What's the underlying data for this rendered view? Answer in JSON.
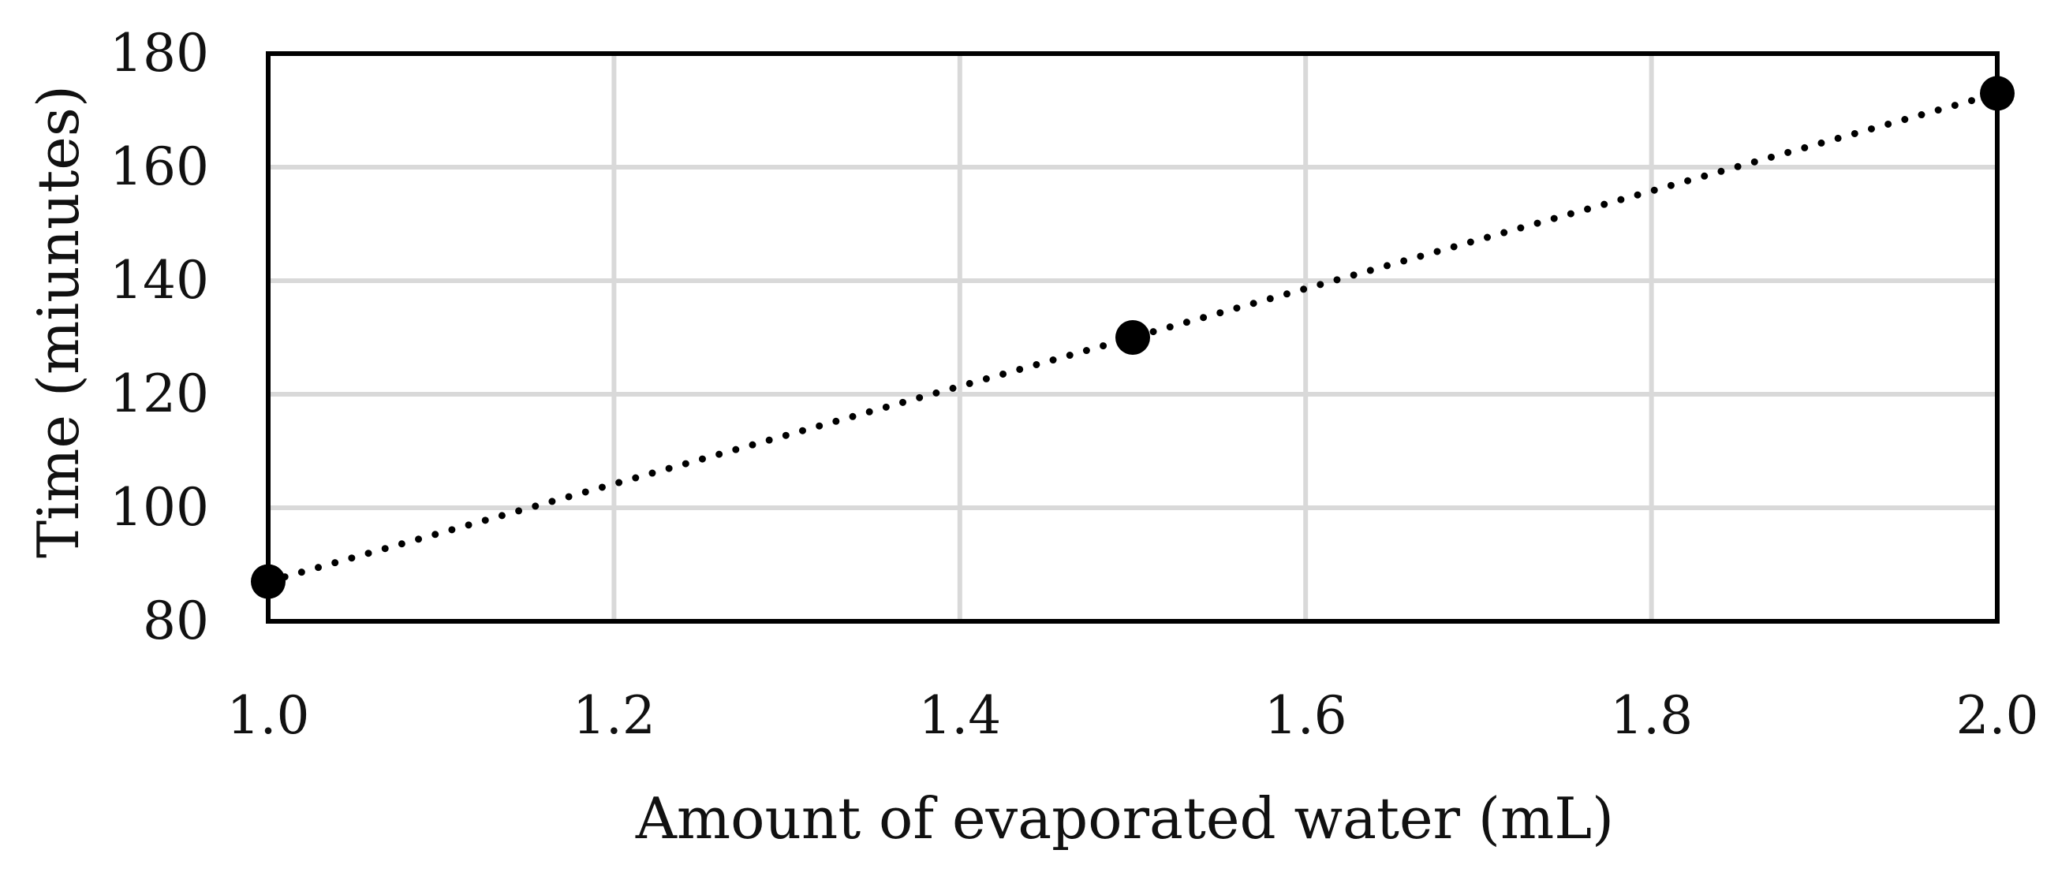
{
  "chart_data": {
    "type": "scatter",
    "title": "",
    "xlabel": "Amount of evaporated water (mL)",
    "ylabel": "Time (miunutes)",
    "xlim": [
      1.0,
      2.0
    ],
    "ylim": [
      80,
      180
    ],
    "x_ticks": [
      "1.0",
      "1.2",
      "1.4",
      "1.6",
      "1.8",
      "2.0"
    ],
    "y_ticks": [
      "80",
      "100",
      "120",
      "140",
      "160",
      "180"
    ],
    "grid": true,
    "series": [
      {
        "name": "Time",
        "x": [
          1.0,
          1.5,
          2.0
        ],
        "y": [
          87,
          130,
          173
        ],
        "marker": "circle",
        "color": "#000000"
      }
    ],
    "trendline": {
      "type": "linear",
      "style": "dotted",
      "color": "#000000"
    }
  }
}
